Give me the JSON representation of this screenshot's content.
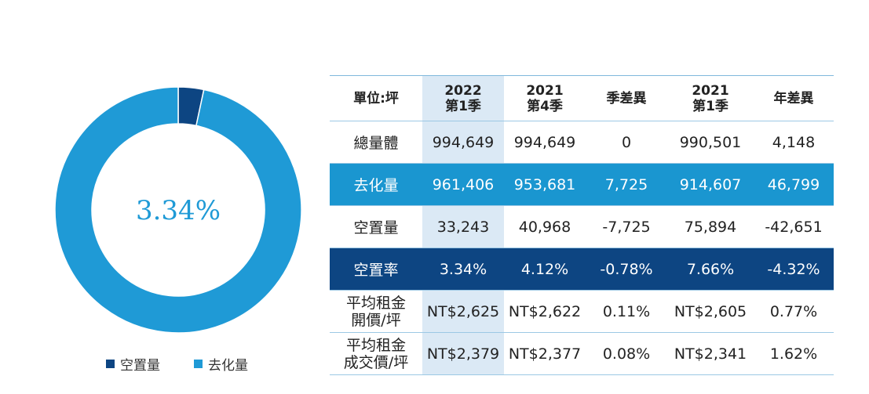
{
  "colors": {
    "vacant": "#0d4582",
    "absorbed": "#1f9ad6",
    "highlight_col": "#dbe9f5",
    "row_blue": "#1a96d0",
    "row_navy": "#0d4582"
  },
  "chart_data": {
    "type": "pie",
    "donut": true,
    "center_label": "3.34%",
    "slices": [
      {
        "name": "空置量",
        "value": 33243
      },
      {
        "name": "去化量",
        "value": 961406
      }
    ],
    "legend": [
      "空置量",
      "去化量"
    ],
    "legend_position": "bottom"
  },
  "table": {
    "headers": [
      {
        "line1": "單位:坪",
        "line2": ""
      },
      {
        "line1": "2022",
        "line2": "第1季"
      },
      {
        "line1": "2021",
        "line2": "第4季"
      },
      {
        "line1": "季差異",
        "line2": ""
      },
      {
        "line1": "2021",
        "line2": "第1季"
      },
      {
        "line1": "年差異",
        "line2": ""
      }
    ],
    "rows": [
      {
        "style": "plain",
        "label1": "總量體",
        "label2": "",
        "cells": [
          "994,649",
          "994,649",
          "0",
          "990,501",
          "4,148"
        ]
      },
      {
        "style": "blue",
        "label1": "去化量",
        "label2": "",
        "cells": [
          "961,406",
          "953,681",
          "7,725",
          "914,607",
          "46,799"
        ]
      },
      {
        "style": "plain",
        "label1": "空置量",
        "label2": "",
        "cells": [
          "33,243",
          "40,968",
          "-7,725",
          "75,894",
          "-42,651"
        ]
      },
      {
        "style": "navy",
        "label1": "空置率",
        "label2": "",
        "cells": [
          "3.34%",
          "4.12%",
          "-0.78%",
          "7.66%",
          "-4.32%"
        ]
      },
      {
        "style": "plain",
        "label1": "平均租金",
        "label2": "開價/坪",
        "cells": [
          "NT$2,625",
          "NT$2,622",
          "0.11%",
          "NT$2,605",
          "0.77%"
        ]
      },
      {
        "style": "plain",
        "label1": "平均租金",
        "label2": "成交價/坪",
        "cells": [
          "NT$2,379",
          "NT$2,377",
          "0.08%",
          "NT$2,341",
          "1.62%"
        ]
      }
    ]
  }
}
